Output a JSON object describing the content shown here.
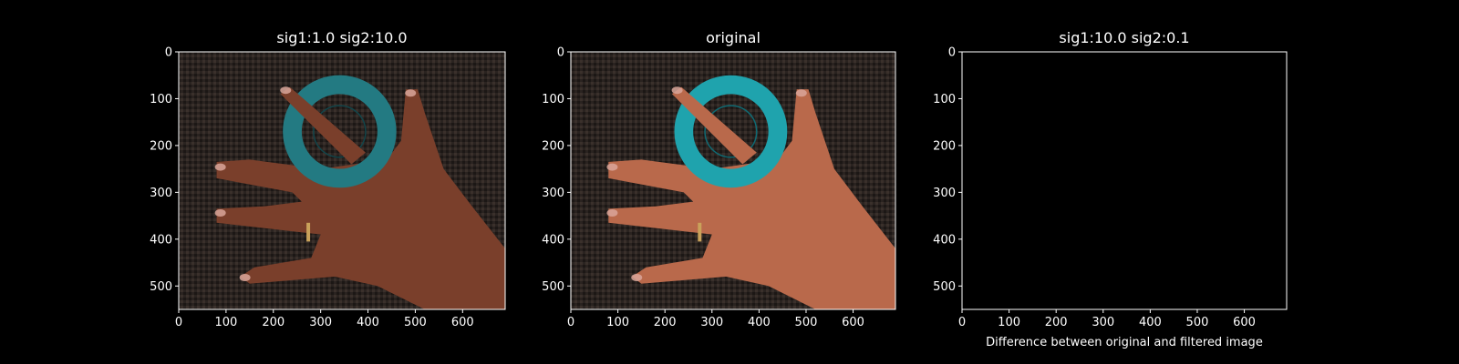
{
  "chart_data": [
    {
      "type": "image",
      "title": "sig1:1.0 sig2:10.0",
      "content": "hand-photo-filtered",
      "xlim": [
        0,
        690
      ],
      "ylim": [
        0,
        550
      ],
      "xticks": [
        0,
        100,
        200,
        300,
        400,
        500,
        600
      ],
      "yticks": [
        0,
        100,
        200,
        300,
        400,
        500
      ],
      "xlabel": ""
    },
    {
      "type": "image",
      "title": "original",
      "content": "hand-photo",
      "xlim": [
        0,
        690
      ],
      "ylim": [
        0,
        550
      ],
      "xticks": [
        0,
        100,
        200,
        300,
        400,
        500,
        600
      ],
      "yticks": [
        0,
        100,
        200,
        300,
        400,
        500
      ],
      "xlabel": ""
    },
    {
      "type": "image",
      "title": "sig1:10.0 sig2:0.1",
      "content": "blank-black",
      "xlim": [
        0,
        690
      ],
      "ylim": [
        0,
        550
      ],
      "xticks": [
        0,
        100,
        200,
        300,
        400,
        500,
        600
      ],
      "yticks": [
        0,
        100,
        200,
        300,
        400,
        500
      ],
      "xlabel": "Difference between original and filtered image"
    }
  ],
  "colors": {
    "background": "#000000",
    "axes": "#ffffff",
    "ring": "#1f9aa6",
    "skin": "#b56a4b",
    "fabric": "#2b2420"
  }
}
